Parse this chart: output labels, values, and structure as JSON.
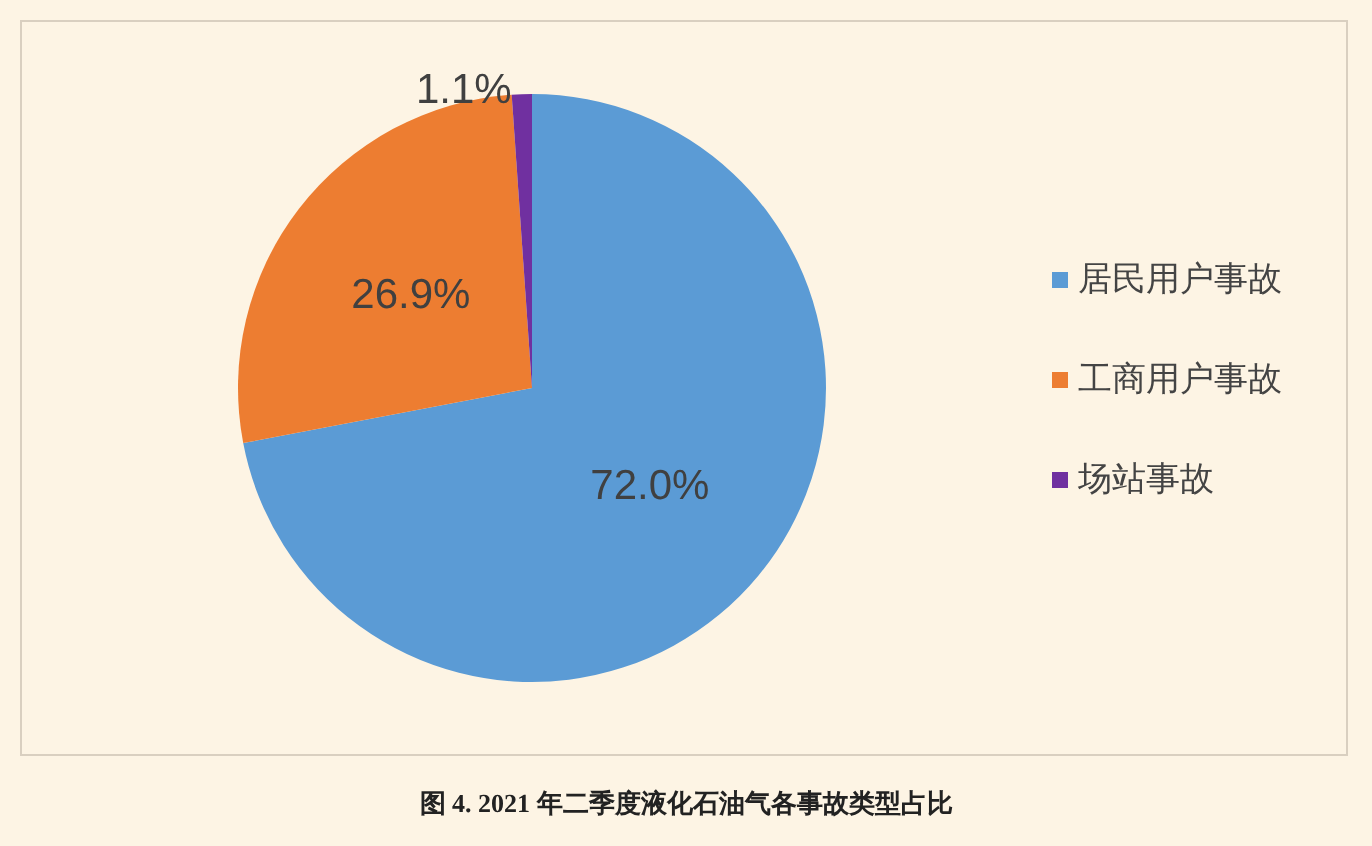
{
  "chart_data": {
    "type": "pie",
    "title": "图 4. 2021 年二季度液化石油气各事故类型占比",
    "categories": [
      "居民用户事故",
      "工商用户事故",
      "场站事故"
    ],
    "values": [
      72.0,
      26.9,
      1.1
    ],
    "colors": [
      "#5b9bd5",
      "#ed7d31",
      "#7030a0"
    ],
    "value_labels": [
      "72.0%",
      "26.9%",
      "1.1%"
    ],
    "legend": "right"
  }
}
